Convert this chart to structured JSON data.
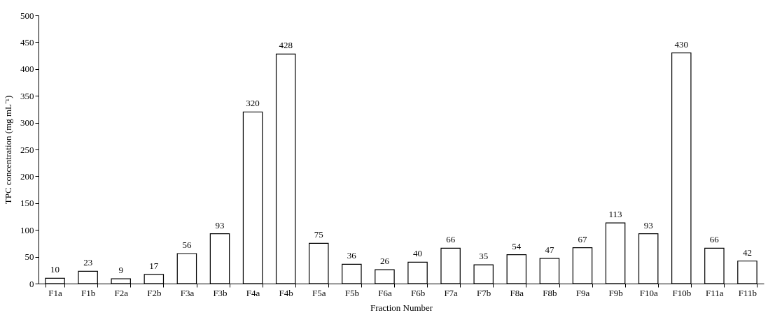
{
  "chart_data": {
    "type": "bar",
    "xlabel": "Fraction Number",
    "ylabel": "TPC concentration (mg mL⁻¹)",
    "categories": [
      "F1a",
      "F1b",
      "F2a",
      "F2b",
      "F3a",
      "F3b",
      "F4a",
      "F4b",
      "F5a",
      "F5b",
      "F6a",
      "F6b",
      "F7a",
      "F7b",
      "F8a",
      "F8b",
      "F9a",
      "F9b",
      "F10a",
      "F10b",
      "F11a",
      "F11b"
    ],
    "values": [
      10,
      23,
      9,
      17,
      56,
      93,
      320,
      428,
      75,
      36,
      26,
      40,
      66,
      35,
      54,
      47,
      67,
      113,
      93,
      430,
      66,
      42
    ],
    "color": "#ffffff",
    "ylim": [
      0,
      500
    ],
    "yticks": [
      0,
      50,
      100,
      150,
      200,
      250,
      300,
      350,
      400,
      450,
      500
    ],
    "grid": false,
    "data_labels": true
  }
}
